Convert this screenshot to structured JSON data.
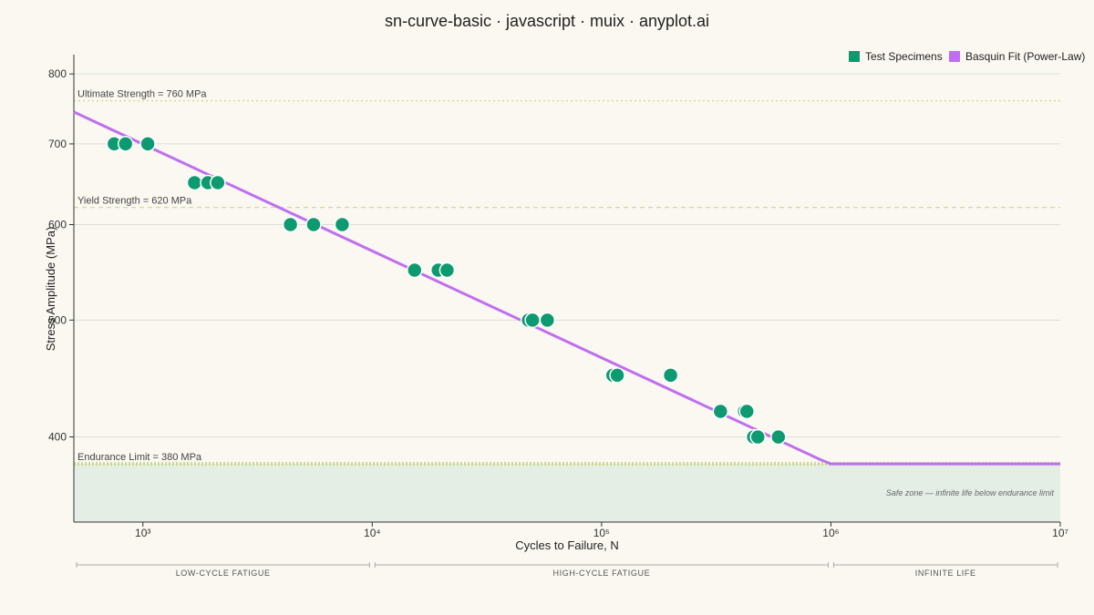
{
  "title": "sn-curve-basic · javascript · muix · anyplot.ai",
  "colors": {
    "background": "#FAF8F1",
    "specimen": "#0E9A70",
    "fit": "#C06EF0",
    "reference": "#CDD98A",
    "safe_zone": "#E4EEE5",
    "grid": "#DDDDDD"
  },
  "chart_data": {
    "type": "scatter",
    "xlabel": "Cycles to Failure, N",
    "ylabel": "Stress Amplitude (MPa)",
    "x_scale": "log",
    "y_scale": "log",
    "xlim": [
      500,
      10000000
    ],
    "ylim": [
      340,
      830
    ],
    "x_ticks": [
      1000,
      10000,
      100000,
      1000000,
      10000000
    ],
    "x_tick_labels": [
      "10³",
      "10⁴",
      "10⁵",
      "10⁶",
      "10⁷"
    ],
    "y_ticks": [
      400,
      500,
      600,
      700,
      800
    ],
    "y_tick_labels": [
      "400",
      "500",
      "600",
      "700",
      "800"
    ],
    "grid": true,
    "legend_position": "top-right",
    "legend": [
      "Test Specimens",
      "Basquin Fit (Power-Law)"
    ],
    "series": [
      {
        "name": "Test Specimens",
        "type": "scatter",
        "points": [
          {
            "x": 750,
            "y": 700
          },
          {
            "x": 840,
            "y": 700
          },
          {
            "x": 1050,
            "y": 700
          },
          {
            "x": 1680,
            "y": 650
          },
          {
            "x": 1920,
            "y": 650
          },
          {
            "x": 2120,
            "y": 650
          },
          {
            "x": 4400,
            "y": 600
          },
          {
            "x": 5550,
            "y": 600
          },
          {
            "x": 7400,
            "y": 600
          },
          {
            "x": 15300,
            "y": 550
          },
          {
            "x": 19400,
            "y": 550
          },
          {
            "x": 21200,
            "y": 550
          },
          {
            "x": 48000,
            "y": 500
          },
          {
            "x": 50000,
            "y": 500
          },
          {
            "x": 58000,
            "y": 500
          },
          {
            "x": 112000,
            "y": 450
          },
          {
            "x": 117000,
            "y": 450
          },
          {
            "x": 200000,
            "y": 450
          },
          {
            "x": 330000,
            "y": 420
          },
          {
            "x": 420000,
            "y": 420
          },
          {
            "x": 430000,
            "y": 420
          },
          {
            "x": 460000,
            "y": 400
          },
          {
            "x": 480000,
            "y": 400
          },
          {
            "x": 590000,
            "y": 400
          }
        ]
      },
      {
        "name": "Basquin Fit (Power-Law)",
        "type": "line",
        "points": [
          {
            "x": 500,
            "y": 744
          },
          {
            "x": 900000,
            "y": 383
          },
          {
            "x": 1000000,
            "y": 380
          },
          {
            "x": 10000000,
            "y": 380
          }
        ]
      }
    ],
    "reference_lines": [
      {
        "label": "Ultimate Strength = 760 MPa",
        "y": 760,
        "style": "dotted"
      },
      {
        "label": "Yield Strength = 620 MPa",
        "y": 620,
        "style": "dashed"
      },
      {
        "label": "Endurance Limit = 380 MPa",
        "y": 380,
        "style": "thick-dotted"
      }
    ],
    "safe_zone": {
      "text": "Safe zone — infinite life below endurance limit",
      "y_max": 380
    },
    "regions": [
      {
        "label": "LOW-CYCLE FATIGUE",
        "x_start": 500,
        "x_end": 10000
      },
      {
        "label": "HIGH-CYCLE FATIGUE",
        "x_start": 10000,
        "x_end": 1000000
      },
      {
        "label": "INFINITE LIFE",
        "x_start": 1000000,
        "x_end": 10000000
      }
    ]
  }
}
